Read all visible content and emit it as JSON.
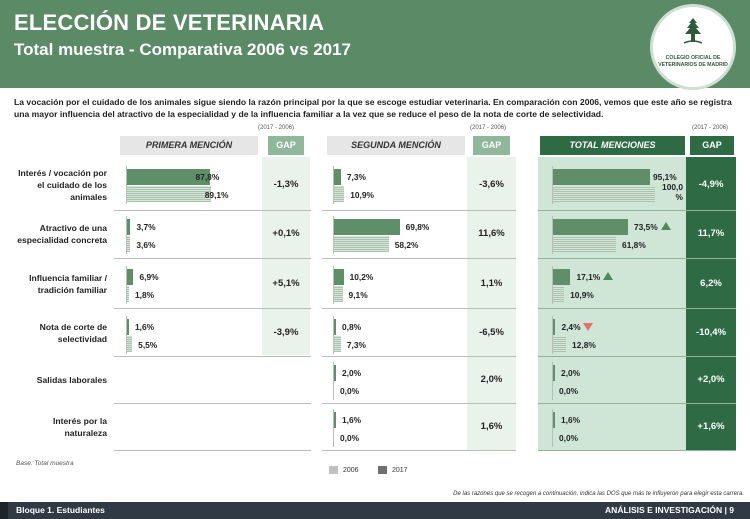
{
  "title": "ELECCIÓN DE VETERINARIA",
  "subtitle": "Total muestra - Comparativa 2006 vs 2017",
  "logo_text": "COLEGIO OFICIAL DE VETERINARIOS DE MADRID",
  "intro": "La vocación por el cuidado de los animales sigue siendo la razón principal por la que se escoge estudiar veterinaria.  En comparación con 2006, vemos que este año se registra una mayor influencia del atractivo de la especialidad y de la influencia familiar a la vez que se reduce el peso de la nota de corte de selectividad.",
  "period_label": "(2017 - 2006)",
  "gap_label": "GAP",
  "columns": [
    "PRIMERA MENCIÓN",
    "SEGUNDA MENCIÓN",
    "TOTAL MENCIONES"
  ],
  "colors": {
    "header": "#5b8a66",
    "bar_2017": "#5e8f69",
    "bar_2006": "#c3d6c6",
    "total_bg": "#cfe6d6",
    "total_gap_bg": "#2e6b45",
    "up_arrow": "#4d8a5b",
    "down_arrow": "#e0736b"
  },
  "chart_data": {
    "type": "bar",
    "series": [
      {
        "name": "2006"
      },
      {
        "name": "2017"
      }
    ],
    "categories": [
      "Interés / vocación por el cuidado de los animales",
      "Atractivo de una especialidad concreta",
      "Influencia familiar / tradición familiar",
      "Nota de corte de selectividad",
      "Salidas laborales",
      "Interés por la naturaleza"
    ],
    "rows": [
      {
        "label": "Interés / vocación por el cuidado de los animales",
        "primera": {
          "v2017": 87.8,
          "v2006": 89.1,
          "l2017": "87,8%",
          "l2006": "89,1%",
          "gap": "-1,3%"
        },
        "segunda": {
          "v2017": 7.3,
          "v2006": 10.9,
          "l2017": "7,3%",
          "l2006": "10,9%",
          "gap": "-3,6%"
        },
        "total": {
          "v2017": 95.1,
          "v2006": 100.0,
          "l2017": "95,1%",
          "l2006": "100,0 %",
          "gap": "-4,9%",
          "trend": "none"
        }
      },
      {
        "label": "Atractivo de una especialidad concreta",
        "primera": {
          "v2017": 3.7,
          "v2006": 3.6,
          "l2017": "3,7%",
          "l2006": "3,6%",
          "gap": "+0,1%"
        },
        "segunda": {
          "v2017": 69.8,
          "v2006": 58.2,
          "l2017": "69,8%",
          "l2006": "58,2%",
          "gap": "11,6%"
        },
        "total": {
          "v2017": 73.5,
          "v2006": 61.8,
          "l2017": "73,5%",
          "l2006": "61,8%",
          "gap": "11,7%",
          "trend": "up"
        }
      },
      {
        "label": "Influencia familiar / tradición familiar",
        "primera": {
          "v2017": 6.9,
          "v2006": 1.8,
          "l2017": "6,9%",
          "l2006": "1,8%",
          "gap": "+5,1%"
        },
        "segunda": {
          "v2017": 10.2,
          "v2006": 9.1,
          "l2017": "10,2%",
          "l2006": "9,1%",
          "gap": "1,1%"
        },
        "total": {
          "v2017": 17.1,
          "v2006": 10.9,
          "l2017": "17,1%",
          "l2006": "10,9%",
          "gap": "6,2%",
          "trend": "up"
        }
      },
      {
        "label": "Nota de corte de selectividad",
        "primera": {
          "v2017": 1.6,
          "v2006": 5.5,
          "l2017": "1,6%",
          "l2006": "5,5%",
          "gap": "-3,9%"
        },
        "segunda": {
          "v2017": 0.8,
          "v2006": 7.3,
          "l2017": "0,8%",
          "l2006": "7,3%",
          "gap": "-6,5%"
        },
        "total": {
          "v2017": 2.4,
          "v2006": 12.8,
          "l2017": "2,4%",
          "l2006": "12,8%",
          "gap": "-10,4%",
          "trend": "down"
        }
      },
      {
        "label": "Salidas laborales",
        "primera": null,
        "segunda": {
          "v2017": 2.0,
          "v2006": 0.0,
          "l2017": "2,0%",
          "l2006": "0,0%",
          "gap": "2,0%"
        },
        "total": {
          "v2017": 2.0,
          "v2006": 0.0,
          "l2017": "2,0%",
          "l2006": "0,0%",
          "gap": "+2,0%",
          "trend": "none"
        }
      },
      {
        "label": "Interés por la naturaleza",
        "primera": null,
        "segunda": {
          "v2017": 1.6,
          "v2006": 0.0,
          "l2017": "1,6%",
          "l2006": "0,0%",
          "gap": "1,6%"
        },
        "total": {
          "v2017": 1.6,
          "v2006": 0.0,
          "l2017": "1,6%",
          "l2006": "0,0%",
          "gap": "+1,6%",
          "trend": "none"
        }
      }
    ],
    "legend": [
      "2006",
      "2017"
    ],
    "legend_position": "bottom"
  },
  "base_note": "Base: Total muestra",
  "question_note": "De las razones que se recogen a continuación, indica las DOS que más te influyeron para elegir esta carrera.",
  "footer": {
    "left": "Bloque 1. Estudiantes",
    "right": "ANÁLISIS E INVESTIGACIÓN    |    9"
  }
}
